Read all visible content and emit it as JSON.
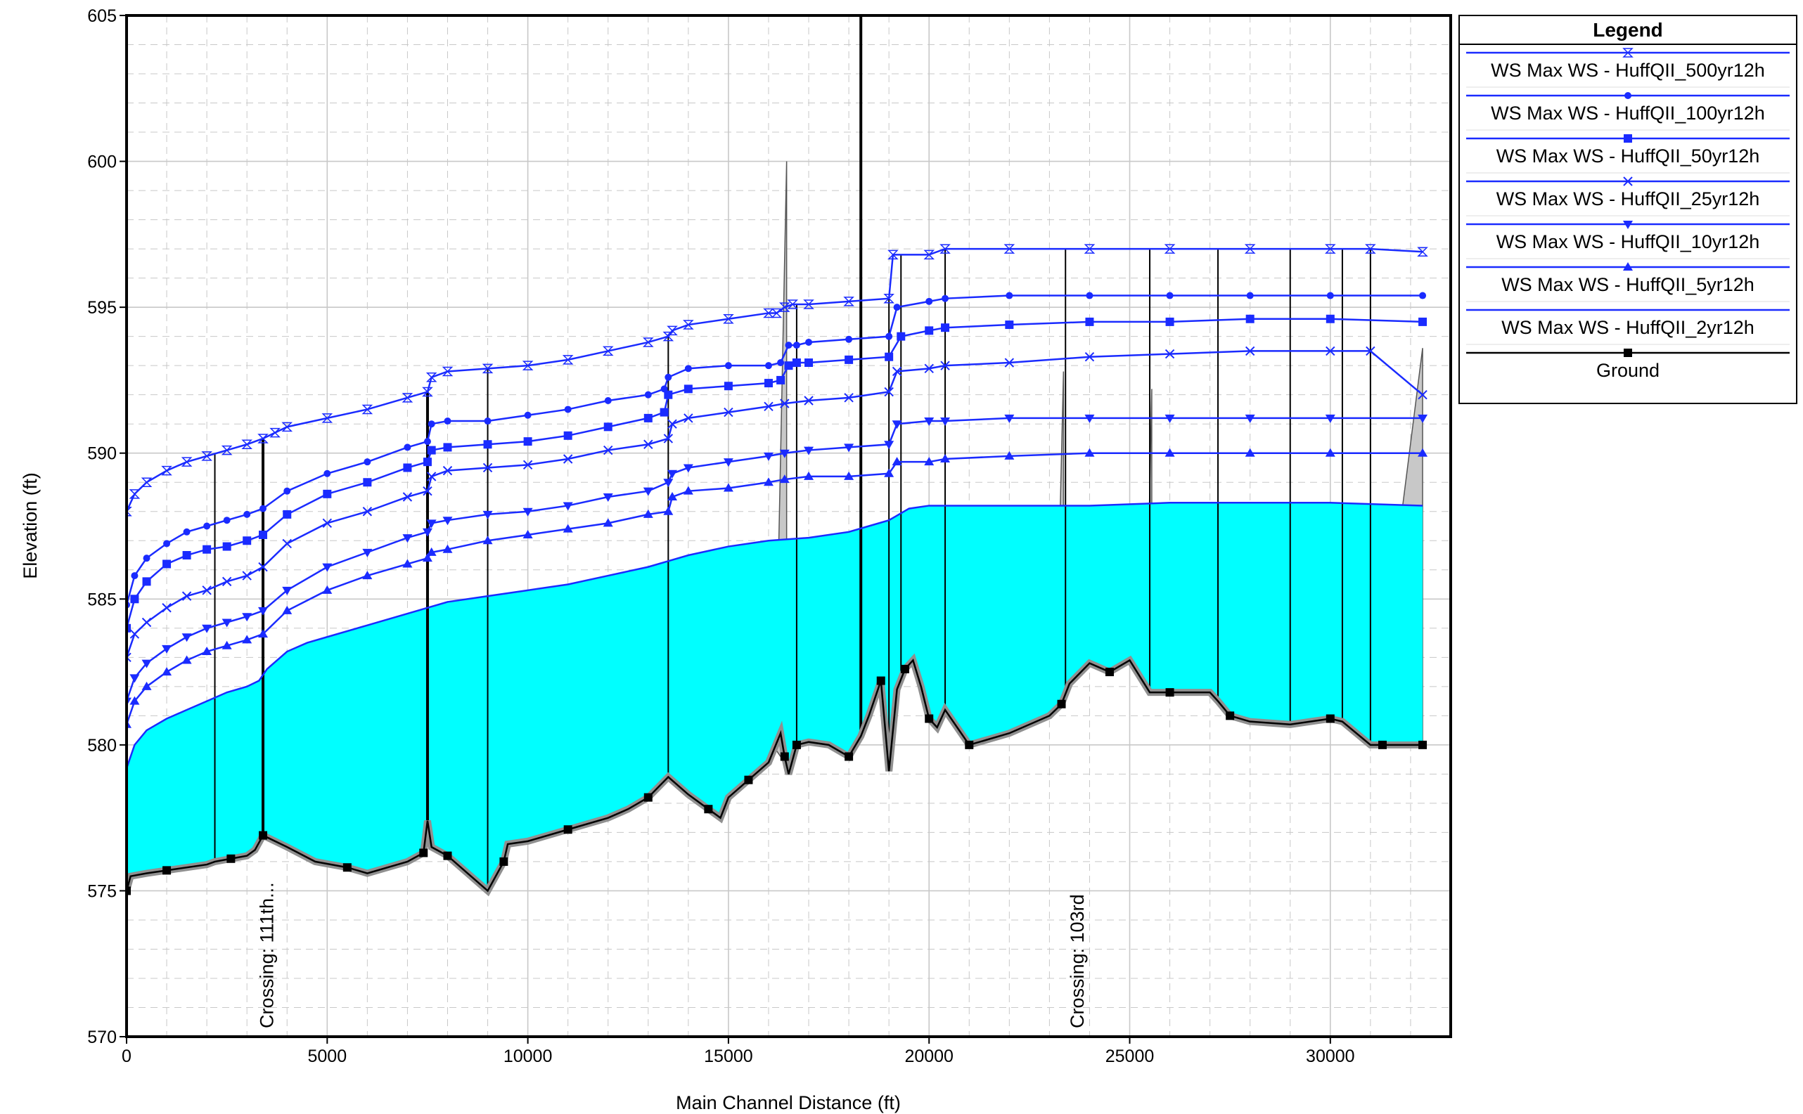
{
  "colors": {
    "water_fill": "#00ffff",
    "water_edge": "#1a2bff",
    "series_blue": "#1a2bff",
    "ground": "#000000",
    "ground_bank": "#909090",
    "grid": "#c8c8c8",
    "structure_fill": "#c8c8c8"
  },
  "chart_data": {
    "type": "line",
    "xlabel": "Main Channel Distance (ft)",
    "ylabel": "Elevation (ft)",
    "xlim": [
      0,
      33000
    ],
    "ylim": [
      570,
      605
    ],
    "x_ticks": [
      0,
      5000,
      10000,
      15000,
      20000,
      25000,
      30000
    ],
    "x_tick_labels": [
      "0",
      "5000",
      "10000",
      "15000",
      "20000",
      "25000",
      "30000"
    ],
    "y_ticks": [
      570,
      575,
      580,
      585,
      590,
      595,
      600,
      605
    ],
    "y_tick_labels": [
      "570",
      "575",
      "580",
      "585",
      "590",
      "595",
      "600",
      "605"
    ],
    "grid": true,
    "legend_position": "right, outside plot",
    "legend": {
      "title": "Legend",
      "entries": [
        {
          "label": "WS  Max WS - HuffQII_500yr12h",
          "marker": "hourglass"
        },
        {
          "label": "WS  Max WS - HuffQII_100yr12h",
          "marker": "circle"
        },
        {
          "label": "WS  Max WS - HuffQII_50yr12h",
          "marker": "square"
        },
        {
          "label": "WS  Max WS - HuffQII_25yr12h",
          "marker": "x"
        },
        {
          "label": "WS  Max WS - HuffQII_10yr12h",
          "marker": "triangle-down"
        },
        {
          "label": "WS  Max WS - HuffQII_5yr12h",
          "marker": "triangle-up"
        },
        {
          "label": "WS  Max WS - HuffQII_2yr12h",
          "marker": "none"
        },
        {
          "label": "Ground",
          "marker": "square"
        }
      ]
    },
    "annotations": [
      {
        "text": "Crossing: 111th...",
        "x": 3300
      },
      {
        "text": "Crossing: 103rd",
        "x": 23500
      }
    ],
    "series": [
      {
        "name": "WS  Max WS - HuffQII_500yr12h",
        "marker": "hourglass",
        "x": [
          0,
          200,
          500,
          1000,
          1500,
          2000,
          2500,
          3000,
          3400,
          3700,
          4000,
          5000,
          6000,
          7000,
          7500,
          7600,
          8000,
          9000,
          10000,
          11000,
          12000,
          13000,
          13500,
          13600,
          14000,
          15000,
          16000,
          16200,
          16400,
          16600,
          17000,
          18000,
          19000,
          19100,
          20000,
          20400,
          22000,
          24000,
          26000,
          28000,
          30000,
          31000,
          32300
        ],
        "y": [
          588.0,
          588.6,
          589.0,
          589.4,
          589.7,
          589.9,
          590.1,
          590.3,
          590.5,
          590.7,
          590.9,
          591.2,
          591.5,
          591.9,
          592.1,
          592.6,
          592.8,
          592.9,
          593.0,
          593.2,
          593.5,
          593.8,
          594.0,
          594.2,
          594.4,
          594.6,
          594.8,
          594.8,
          595.0,
          595.1,
          595.1,
          595.2,
          595.3,
          596.8,
          596.8,
          597.0,
          597.0,
          597.0,
          597.0,
          597.0,
          597.0,
          597.0,
          596.9
        ]
      },
      {
        "name": "WS  Max WS - HuffQII_100yr12h",
        "marker": "circle",
        "x": [
          0,
          200,
          500,
          1000,
          1500,
          2000,
          2500,
          3000,
          3400,
          4000,
          5000,
          6000,
          7000,
          7500,
          7600,
          8000,
          9000,
          10000,
          11000,
          12000,
          13000,
          13400,
          13500,
          14000,
          15000,
          16000,
          16300,
          16500,
          16700,
          17000,
          18000,
          19000,
          19200,
          20000,
          20400,
          22000,
          24000,
          26000,
          28000,
          30000,
          32300
        ],
        "y": [
          584.8,
          585.8,
          586.4,
          586.9,
          587.3,
          587.5,
          587.7,
          587.9,
          588.1,
          588.7,
          589.3,
          589.7,
          590.2,
          590.4,
          591.0,
          591.1,
          591.1,
          591.3,
          591.5,
          591.8,
          592.0,
          592.2,
          592.6,
          592.9,
          593.0,
          593.0,
          593.1,
          593.7,
          593.7,
          593.8,
          593.9,
          594.0,
          595.0,
          595.2,
          595.3,
          595.4,
          595.4,
          595.4,
          595.4,
          595.4,
          595.4
        ]
      },
      {
        "name": "WS  Max WS - HuffQII_50yr12h",
        "marker": "square",
        "x": [
          0,
          200,
          500,
          1000,
          1500,
          2000,
          2500,
          3000,
          3400,
          4000,
          5000,
          6000,
          7000,
          7500,
          7600,
          8000,
          9000,
          10000,
          11000,
          12000,
          13000,
          13400,
          13500,
          14000,
          15000,
          16000,
          16300,
          16500,
          16700,
          17000,
          18000,
          19000,
          19300,
          20000,
          20400,
          22000,
          24000,
          26000,
          28000,
          30000,
          32300
        ],
        "y": [
          584.0,
          585.0,
          585.6,
          586.2,
          586.5,
          586.7,
          586.8,
          587.0,
          587.2,
          587.9,
          588.6,
          589.0,
          589.5,
          589.7,
          590.1,
          590.2,
          590.3,
          590.4,
          590.6,
          590.9,
          591.2,
          591.4,
          592.0,
          592.2,
          592.3,
          592.4,
          592.5,
          593.0,
          593.1,
          593.1,
          593.2,
          593.3,
          594.0,
          594.2,
          594.3,
          594.4,
          594.5,
          594.5,
          594.6,
          594.6,
          594.5
        ]
      },
      {
        "name": "WS  Max WS - HuffQII_25yr12h",
        "marker": "x",
        "x": [
          0,
          200,
          500,
          1000,
          1500,
          2000,
          2500,
          3000,
          3400,
          4000,
          5000,
          6000,
          7000,
          7500,
          7600,
          8000,
          9000,
          10000,
          11000,
          12000,
          13000,
          13500,
          13600,
          14000,
          15000,
          16000,
          16400,
          17000,
          18000,
          19000,
          19200,
          20000,
          20400,
          22000,
          24000,
          26000,
          28000,
          30000,
          31000,
          32300
        ],
        "y": [
          583.0,
          583.8,
          584.2,
          584.7,
          585.1,
          585.3,
          585.6,
          585.8,
          586.1,
          586.9,
          587.6,
          588.0,
          588.5,
          588.7,
          589.2,
          589.4,
          589.5,
          589.6,
          589.8,
          590.1,
          590.3,
          590.5,
          591.0,
          591.2,
          591.4,
          591.6,
          591.7,
          591.8,
          591.9,
          592.1,
          592.8,
          592.9,
          593.0,
          593.1,
          593.3,
          593.4,
          593.5,
          593.5,
          593.5,
          592.0
        ]
      },
      {
        "name": "WS  Max WS - HuffQII_10yr12h",
        "marker": "triangle-down",
        "x": [
          0,
          200,
          500,
          1000,
          1500,
          2000,
          2500,
          3000,
          3400,
          4000,
          5000,
          6000,
          7000,
          7500,
          7600,
          8000,
          9000,
          10000,
          11000,
          12000,
          13000,
          13500,
          13600,
          14000,
          15000,
          16000,
          16400,
          17000,
          18000,
          19000,
          19200,
          20000,
          20400,
          22000,
          24000,
          26000,
          28000,
          30000,
          32300
        ],
        "y": [
          581.5,
          582.3,
          582.8,
          583.3,
          583.7,
          584.0,
          584.2,
          584.4,
          584.6,
          585.3,
          586.1,
          586.6,
          587.1,
          587.3,
          587.6,
          587.7,
          587.9,
          588.0,
          588.2,
          588.5,
          588.7,
          589.0,
          589.3,
          589.5,
          589.7,
          589.9,
          590.0,
          590.1,
          590.2,
          590.3,
          591.0,
          591.1,
          591.1,
          591.2,
          591.2,
          591.2,
          591.2,
          591.2,
          591.2
        ]
      },
      {
        "name": "WS  Max WS - HuffQII_5yr12h",
        "marker": "triangle-up",
        "x": [
          0,
          200,
          500,
          1000,
          1500,
          2000,
          2500,
          3000,
          3400,
          4000,
          5000,
          6000,
          7000,
          7500,
          7600,
          8000,
          9000,
          10000,
          11000,
          12000,
          13000,
          13500,
          13600,
          14000,
          15000,
          16000,
          16400,
          17000,
          18000,
          19000,
          19200,
          20000,
          20400,
          22000,
          24000,
          26000,
          28000,
          30000,
          32300
        ],
        "y": [
          580.7,
          581.5,
          582.0,
          582.5,
          582.9,
          583.2,
          583.4,
          583.6,
          583.8,
          584.6,
          585.3,
          585.8,
          586.2,
          586.4,
          586.6,
          586.7,
          587.0,
          587.2,
          587.4,
          587.6,
          587.9,
          588.0,
          588.5,
          588.7,
          588.8,
          589.0,
          589.1,
          589.2,
          589.2,
          589.3,
          589.7,
          589.7,
          589.8,
          589.9,
          590.0,
          590.0,
          590.0,
          590.0,
          590.0
        ]
      },
      {
        "name": "WS  Max WS - HuffQII_2yr12h",
        "marker": "none",
        "x": [
          0,
          200,
          500,
          1000,
          1500,
          2000,
          2500,
          3000,
          3300,
          3500,
          4000,
          4500,
          5000,
          6000,
          7000,
          8000,
          9000,
          10000,
          11000,
          12000,
          13000,
          13500,
          14000,
          15000,
          16000,
          17000,
          18000,
          18500,
          19000,
          19500,
          20000,
          22000,
          24000,
          26000,
          27000,
          28000,
          30000,
          32300
        ],
        "y": [
          579.2,
          580.0,
          580.5,
          580.9,
          581.2,
          581.5,
          581.8,
          582.0,
          582.2,
          582.6,
          583.2,
          583.5,
          583.7,
          584.1,
          584.5,
          584.9,
          585.1,
          585.3,
          585.5,
          585.8,
          586.1,
          586.3,
          586.5,
          586.8,
          587.0,
          587.1,
          587.3,
          587.5,
          587.7,
          588.1,
          588.2,
          588.2,
          588.2,
          588.3,
          588.3,
          588.3,
          588.3,
          588.2
        ]
      },
      {
        "name": "Ground",
        "marker": "square",
        "x": [
          0,
          100,
          500,
          1000,
          2000,
          2200,
          2600,
          3000,
          3200,
          3400,
          4000,
          4700,
          5500,
          6000,
          7000,
          7400,
          7500,
          7600,
          8000,
          8500,
          9000,
          9400,
          9500,
          10000,
          11000,
          12000,
          12500,
          13000,
          13500,
          14000,
          14500,
          14800,
          15000,
          15500,
          16000,
          16300,
          16400,
          16500,
          16600,
          16700,
          17000,
          17500,
          18000,
          18300,
          18500,
          18800,
          19000,
          19200,
          19400,
          19600,
          19800,
          20000,
          20200,
          20400,
          21000,
          22000,
          23000,
          23300,
          23500,
          24000,
          24500,
          25000,
          25500,
          26000,
          27000,
          27200,
          27500,
          28000,
          29000,
          30000,
          30300,
          31000,
          31300,
          32300
        ],
        "y": [
          575.0,
          575.5,
          575.6,
          575.7,
          575.9,
          576.0,
          576.1,
          576.2,
          576.4,
          576.9,
          576.5,
          576.0,
          575.8,
          575.6,
          576.0,
          576.3,
          577.4,
          576.5,
          576.2,
          575.6,
          575.0,
          576.0,
          576.6,
          576.7,
          577.1,
          577.5,
          577.8,
          578.2,
          578.9,
          578.3,
          577.8,
          577.5,
          578.2,
          578.8,
          579.4,
          580.4,
          579.6,
          579.0,
          579.5,
          580.0,
          580.1,
          580.0,
          579.6,
          580.3,
          581.0,
          582.2,
          579.1,
          581.9,
          582.6,
          582.9,
          582.0,
          580.9,
          580.6,
          581.2,
          580.0,
          580.4,
          581.0,
          581.4,
          582.1,
          582.8,
          582.5,
          582.9,
          581.8,
          581.8,
          581.8,
          581.5,
          581.0,
          580.8,
          580.7,
          580.9,
          580.8,
          580.0,
          580.0,
          580.0
        ]
      }
    ]
  }
}
